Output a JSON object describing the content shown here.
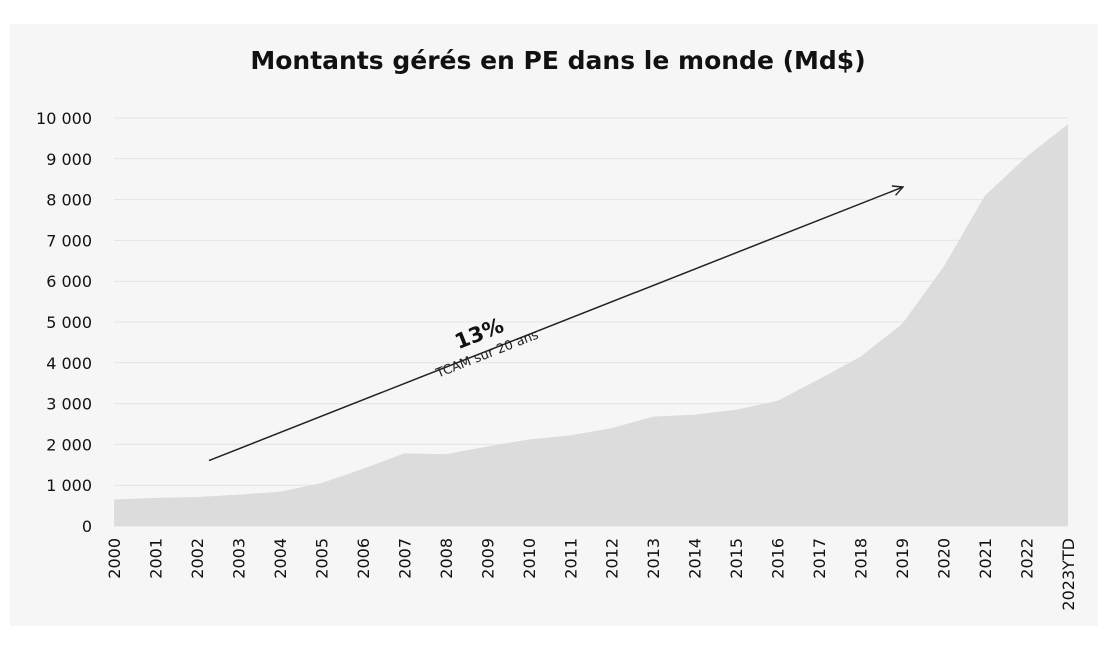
{
  "chart_data": {
    "type": "area",
    "title": "Montants gérés en PE dans le monde (Md$)",
    "xlabel": "",
    "ylabel": "",
    "ylim": [
      0,
      10000
    ],
    "y_ticks": [
      0,
      1000,
      2000,
      3000,
      4000,
      5000,
      6000,
      7000,
      8000,
      9000,
      10000
    ],
    "y_tick_labels": [
      "0",
      "1 000",
      "2 000",
      "3 000",
      "4 000",
      "5 000",
      "6 000",
      "7 000",
      "8 000",
      "9 000",
      "10 000"
    ],
    "categories": [
      "2000",
      "2001",
      "2002",
      "2003",
      "2004",
      "2005",
      "2006",
      "2007",
      "2008",
      "2009",
      "2010",
      "2011",
      "2012",
      "2013",
      "2014",
      "2015",
      "2016",
      "2017",
      "2018",
      "2019",
      "2020",
      "2021",
      "2022",
      "2023YTD"
    ],
    "values": [
      650,
      690,
      710,
      770,
      840,
      1050,
      1400,
      1780,
      1760,
      1950,
      2120,
      2220,
      2400,
      2680,
      2730,
      2850,
      3070,
      3600,
      4150,
      4950,
      6350,
      8100,
      9050,
      9850
    ],
    "grid": true,
    "annotation": {
      "value": "13%",
      "caption": "TCAM sur 20 ans",
      "arrow_from": {
        "x": "2002",
        "y": 1800
      },
      "arrow_to": {
        "x": "2019",
        "y": 8300
      }
    },
    "colors": {
      "area": "#dcdcdc",
      "background": "#f6f6f6",
      "arrow": "#222222",
      "grid": "#e4e4e4"
    }
  }
}
